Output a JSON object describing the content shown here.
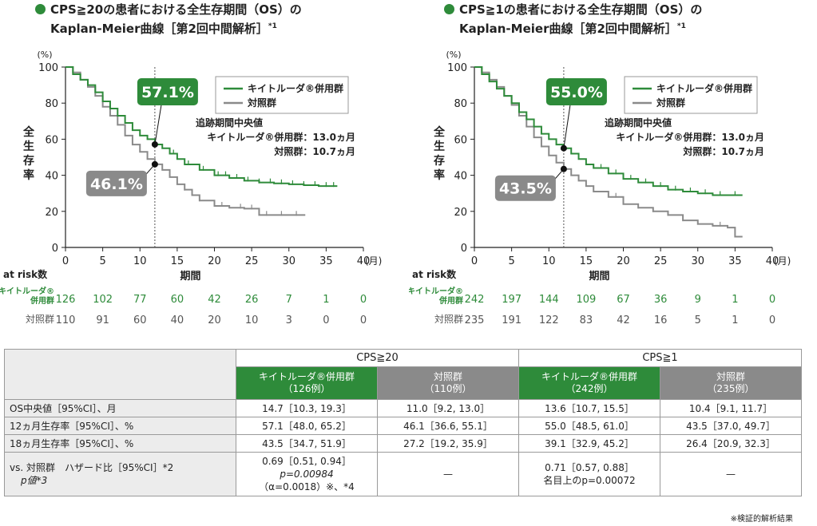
{
  "colors": {
    "green": "#2e8b3a",
    "grey": "#8a8a8a"
  },
  "panels": [
    {
      "title_line1": "CPS≧20の患者における全生存期間（OS）の",
      "title_line2": "Kaplan-Meier曲線［第2回中間解析］",
      "title_sup": "*1",
      "follow_up": {
        "title": "追跡期間中央値",
        "keytruda": "キイトルーダ®併用群：13.0ヵ月",
        "control": "対照群：10.7ヵ月"
      },
      "callouts": {
        "keytruda": "57.1%",
        "control": "46.1%"
      }
    },
    {
      "title_line1": "CPS≧1の患者における全生存期間（OS）の",
      "title_line2": "Kaplan-Meier曲線［第2回中間解析］",
      "title_sup": "*1",
      "follow_up": {
        "title": "追跡期間中央値",
        "keytruda": "キイトルーダ®併用群：13.0ヵ月",
        "control": "対照群：10.7ヵ月"
      },
      "callouts": {
        "keytruda": "55.0%",
        "control": "43.5%"
      }
    }
  ],
  "chart_data": [
    {
      "type": "line",
      "title": "CPS≧20の患者における全生存期間（OS）のKaplan-Meier曲線［第2回中間解析］",
      "xlabel": "期間",
      "x_unit": "(月)",
      "ylabel": "全生存率",
      "y_unit": "(%)",
      "xlim": [
        0,
        40
      ],
      "ylim": [
        0,
        100
      ],
      "xticks": [
        0,
        5,
        10,
        15,
        20,
        25,
        30,
        35,
        40
      ],
      "yticks": [
        0,
        20,
        40,
        60,
        80,
        100
      ],
      "marker_x": 12,
      "legend_position": "top-right",
      "series": [
        {
          "name": "キイトルーダ®併用群",
          "x": [
            0,
            1,
            2,
            3,
            4,
            5,
            6,
            7,
            8,
            9,
            10,
            11,
            12,
            13,
            14,
            15,
            16,
            18,
            20,
            22,
            24,
            26,
            28,
            30,
            32,
            34,
            36.5
          ],
          "y": [
            100,
            96,
            93,
            90,
            86,
            81,
            77,
            73,
            69,
            65,
            62,
            60,
            57.1,
            55,
            52,
            49,
            46,
            43,
            40,
            38.5,
            37,
            36,
            35.5,
            35,
            34.5,
            34,
            34
          ],
          "censor_x": [
            14.5,
            16.5,
            18.5,
            20.5,
            21.5,
            23,
            24.5,
            26,
            27.5,
            29,
            30.5,
            32,
            33.5,
            35,
            36
          ]
        },
        {
          "name": "対照群",
          "x": [
            0,
            1,
            2,
            3,
            4,
            5,
            6,
            7,
            8,
            9,
            10,
            11,
            12,
            13,
            14,
            15,
            16,
            17,
            18,
            20,
            22,
            24,
            26,
            28,
            30,
            32.2
          ],
          "y": [
            100,
            97,
            93,
            89,
            84,
            78,
            73,
            68,
            62,
            57,
            53,
            49,
            46.1,
            43,
            39,
            35,
            32,
            29,
            26,
            23,
            22,
            21.5,
            18,
            18,
            18,
            18
          ],
          "censor_x": [
            16,
            18,
            21,
            23.5,
            25,
            27,
            29,
            31
          ]
        }
      ],
      "at_risk": {
        "label": "at risk数",
        "months": [
          0,
          5,
          10,
          15,
          20,
          25,
          30,
          35,
          40
        ],
        "rows": [
          {
            "name": "キイトルーダ®併用群",
            "values": [
              126,
              102,
              77,
              60,
              42,
              26,
              7,
              1,
              0
            ]
          },
          {
            "name": "対照群",
            "values": [
              110,
              91,
              60,
              40,
              20,
              10,
              3,
              0,
              0
            ]
          }
        ]
      }
    },
    {
      "type": "line",
      "title": "CPS≧1の患者における全生存期間（OS）のKaplan-Meier曲線［第2回中間解析］",
      "xlabel": "期間",
      "x_unit": "(月)",
      "ylabel": "全生存率",
      "y_unit": "(%)",
      "xlim": [
        0,
        40
      ],
      "ylim": [
        0,
        100
      ],
      "xticks": [
        0,
        5,
        10,
        15,
        20,
        25,
        30,
        35,
        40
      ],
      "yticks": [
        0,
        20,
        40,
        60,
        80,
        100
      ],
      "marker_x": 12,
      "legend_position": "top-right",
      "series": [
        {
          "name": "キイトルーダ®併用群",
          "x": [
            0,
            1,
            2,
            3,
            4,
            5,
            6,
            7,
            8,
            9,
            10,
            11,
            12,
            13,
            14,
            15,
            16,
            18,
            20,
            22,
            24,
            26,
            28,
            30,
            32,
            34,
            36
          ],
          "y": [
            100,
            96,
            92,
            88,
            84,
            80,
            75,
            71,
            67,
            63,
            60,
            57,
            55,
            52,
            49,
            46,
            44,
            41,
            38,
            36,
            34,
            32,
            31,
            30,
            29,
            29,
            29
          ],
          "censor_x": [
            15,
            17,
            19,
            21,
            23,
            25,
            27,
            29,
            31,
            33,
            35
          ]
        },
        {
          "name": "対照群",
          "x": [
            0,
            1,
            2,
            3,
            4,
            5,
            6,
            7,
            8,
            9,
            10,
            11,
            12,
            13,
            14,
            15,
            16,
            18,
            20,
            22,
            24,
            26,
            28,
            30,
            32,
            34,
            35,
            36
          ],
          "y": [
            100,
            97,
            93,
            89,
            84,
            79,
            73,
            67,
            61,
            56,
            51,
            47,
            43.5,
            40,
            37,
            34,
            31,
            28,
            24,
            22,
            20,
            18,
            15,
            13,
            12,
            11,
            6,
            6
          ],
          "censor_x": [
            16,
            19,
            22,
            24,
            26,
            28,
            30,
            33
          ]
        }
      ],
      "at_risk": {
        "label": "at risk数",
        "months": [
          0,
          5,
          10,
          15,
          20,
          25,
          30,
          35,
          40
        ],
        "rows": [
          {
            "name": "キイトルーダ®併用群",
            "values": [
              242,
              197,
              144,
              109,
              67,
              36,
              9,
              1,
              0
            ]
          },
          {
            "name": "対照群",
            "values": [
              235,
              191,
              122,
              83,
              42,
              16,
              5,
              1,
              0
            ]
          }
        ]
      }
    }
  ],
  "table": {
    "groups": [
      "CPS≧20",
      "CPS≧1"
    ],
    "arms": [
      {
        "line1": "キイトルーダ®併用群",
        "line2": "（126例）"
      },
      {
        "line1": "対照群",
        "line2": "（110例）"
      },
      {
        "line1": "キイトルーダ®併用群",
        "line2": "（242例）"
      },
      {
        "line1": "対照群",
        "line2": "（235例）"
      }
    ],
    "rows": [
      {
        "label": "OS中央値［95%CI］、月",
        "values": [
          "14.7［10.3, 19.3］",
          "11.0［9.2, 13.0］",
          "13.6［10.7, 15.5］",
          "10.4［9.1, 11.7］"
        ]
      },
      {
        "label": "12ヵ月生存率［95%CI］、%",
        "values": [
          "57.1［48.0, 65.2］",
          "46.1［36.6, 55.1］",
          "55.0［48.5, 61.0］",
          "43.5［37.0, 49.7］"
        ]
      },
      {
        "label": "18ヵ月生存率［95%CI］、%",
        "values": [
          "43.5［34.7, 51.9］",
          "27.2［19.2, 35.9］",
          "39.1［32.9, 45.2］",
          "26.4［20.9, 32.3］"
        ]
      }
    ],
    "hr_row": {
      "label_line1": "vs. 対照群　ハザード比［95%CI］*2",
      "label_line2": "p値*3",
      "cps20_keytruda": [
        "0.69［0.51, 0.94］",
        "p=0.00984",
        "（α=0.0018）※、*4"
      ],
      "cps20_control": "—",
      "cps1_keytruda": [
        "0.71［0.57, 0.88］",
        "名目上のp=0.00072"
      ],
      "cps1_control": "—"
    }
  },
  "footnote": "※検証的解析結果"
}
